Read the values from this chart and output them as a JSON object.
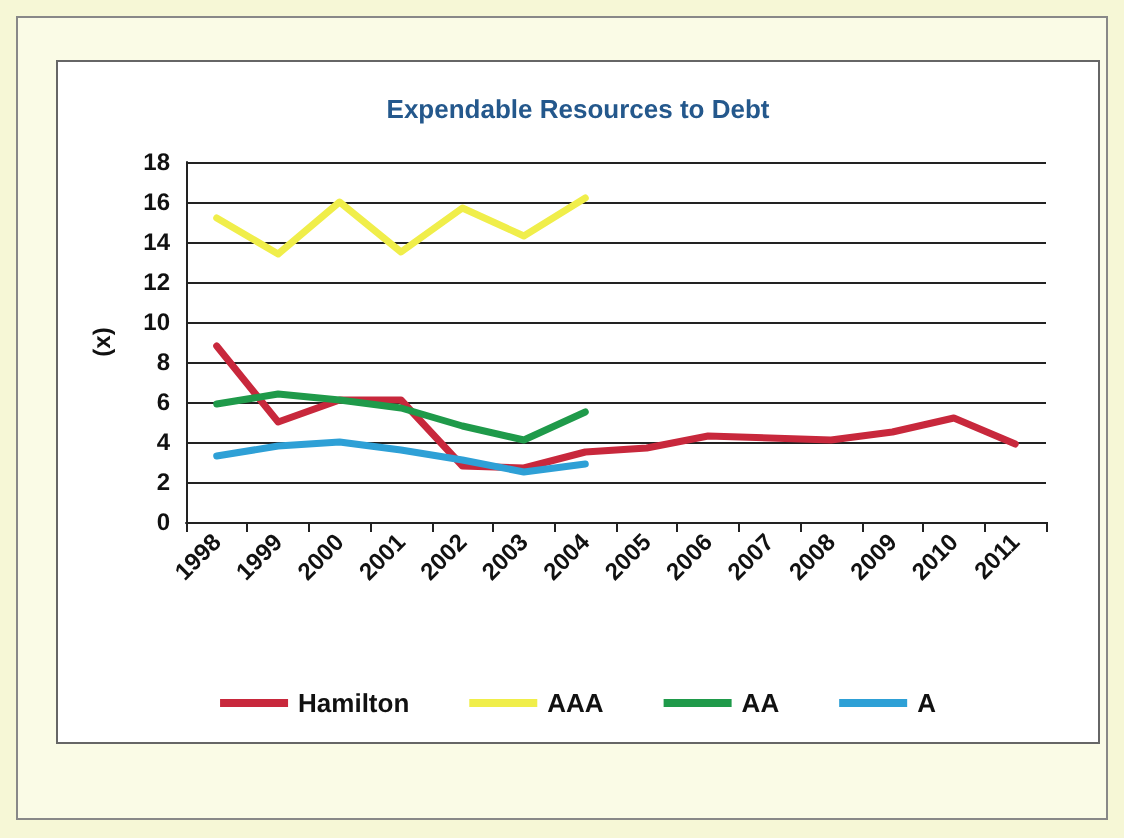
{
  "chart_data": {
    "type": "line",
    "title": "Expendable Resources to Debt",
    "ylabel": "(x)",
    "categories": [
      "1998",
      "1999",
      "2000",
      "2001",
      "2002",
      "2003",
      "2004",
      "2005",
      "2006",
      "2007",
      "2008",
      "2009",
      "2010",
      "2011"
    ],
    "series": [
      {
        "name": "Hamilton",
        "color": "#c8283c",
        "values": [
          8.8,
          5.0,
          6.1,
          6.1,
          2.8,
          2.7,
          3.5,
          3.7,
          4.3,
          4.2,
          4.1,
          4.5,
          5.2,
          3.9
        ]
      },
      {
        "name": "AAA",
        "color": "#f0ee4a",
        "values": [
          15.2,
          13.4,
          16.0,
          13.5,
          15.7,
          14.3,
          16.2,
          null,
          null,
          null,
          null,
          null,
          null,
          null
        ]
      },
      {
        "name": "AA",
        "color": "#1f9a4a",
        "values": [
          5.9,
          6.4,
          6.1,
          5.7,
          4.8,
          4.1,
          5.5,
          null,
          null,
          null,
          null,
          null,
          null,
          null
        ]
      },
      {
        "name": "A",
        "color": "#2ea0d6",
        "values": [
          3.3,
          3.8,
          4.0,
          3.6,
          3.1,
          2.5,
          2.9,
          null,
          null,
          null,
          null,
          null,
          null,
          null
        ]
      }
    ],
    "ylim": [
      0,
      18
    ],
    "yticks": [
      0,
      2,
      4,
      6,
      8,
      10,
      12,
      14,
      16,
      18
    ],
    "grid": "y",
    "legend": "bottom",
    "marker": "none",
    "line_style": "solid"
  }
}
